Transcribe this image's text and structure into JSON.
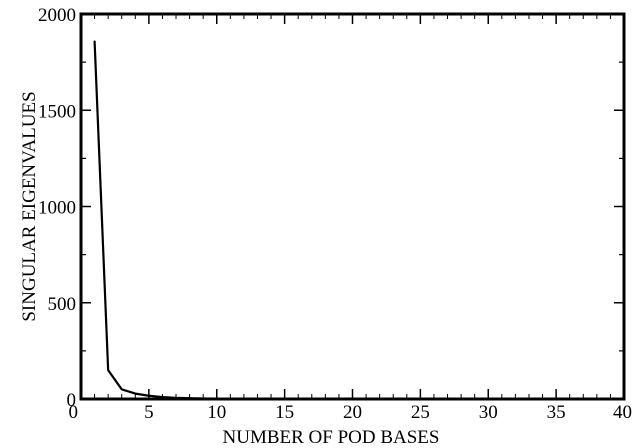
{
  "chart_data": {
    "type": "line",
    "title": "",
    "xlabel": "NUMBER OF POD BASES",
    "ylabel": "SINGULAR EIGENVALUES",
    "xlim": [
      0,
      40
    ],
    "ylim": [
      0,
      2000
    ],
    "xticks": [
      0,
      5,
      10,
      15,
      20,
      25,
      30,
      35,
      40
    ],
    "yticks": [
      0,
      500,
      1000,
      1500,
      2000
    ],
    "xtick_labels": [
      "0",
      "5",
      "10",
      "15",
      "20",
      "25",
      "30",
      "35",
      "40"
    ],
    "ytick_labels": [
      "0",
      "500",
      "1000",
      "1500",
      "2000"
    ],
    "grid": false,
    "legend": "none",
    "series": [
      {
        "color": "#000000",
        "x": [
          1,
          2,
          3,
          4,
          5,
          6,
          7,
          8,
          9,
          10,
          11,
          12,
          13,
          14,
          15,
          16,
          17,
          18,
          19,
          20,
          21,
          22,
          23,
          24,
          25,
          26,
          27,
          28,
          29,
          30,
          31,
          32,
          33,
          34,
          35,
          36,
          37,
          38,
          39,
          40
        ],
        "values": [
          1860,
          150,
          50,
          28,
          17,
          10,
          6,
          4,
          3,
          2,
          1.5,
          1,
          0.8,
          0.6,
          0.5,
          0.4,
          0.3,
          0.25,
          0.2,
          0.18,
          0.15,
          0.13,
          0.12,
          0.1,
          0.09,
          0.08,
          0.07,
          0.06,
          0.05,
          0.05,
          0.04,
          0.04,
          0.03,
          0.03,
          0.03,
          0.02,
          0.02,
          0.02,
          0.02,
          0.01
        ]
      }
    ]
  }
}
